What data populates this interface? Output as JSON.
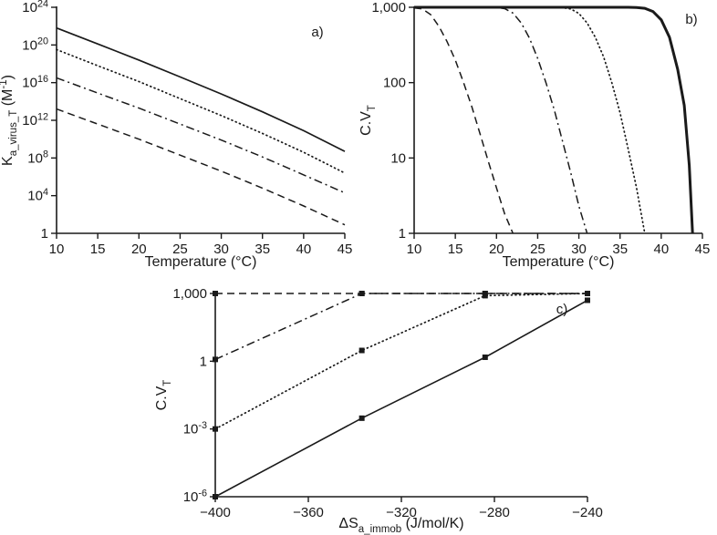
{
  "figure": {
    "background": "#ffffff",
    "line_color": "#1a1a1a"
  },
  "chart_data": [
    {
      "id": "a",
      "type": "line",
      "panel_label": "a)",
      "xlabel": "Temperature (°C)",
      "ylabel": "K_{a_virus_T} (M^{-1})",
      "xlim": [
        10,
        45
      ],
      "xticks": [
        10,
        15,
        20,
        25,
        30,
        35,
        40,
        45
      ],
      "ylog": true,
      "ylim_exp": [
        0,
        24
      ],
      "yticks": [
        {
          "exp": 0,
          "label": "1"
        },
        {
          "exp": 4,
          "label": "10^{4}"
        },
        {
          "exp": 8,
          "label": "10^{8}"
        },
        {
          "exp": 12,
          "label": "10^{12}"
        },
        {
          "exp": 16,
          "label": "10^{16}"
        },
        {
          "exp": 20,
          "label": "10^{20}"
        },
        {
          "exp": 24,
          "label": "10^{24}"
        }
      ],
      "series": [
        {
          "name": "solid-line",
          "style": "solid",
          "width": 1.7,
          "x": [
            10,
            15,
            20,
            25,
            30,
            35,
            40,
            45
          ],
          "y": [
            6.3e+21,
            1.3e+20,
            2.5e+18,
            4e+16,
            630000000000000.0,
            7900000000000.0,
            79000000000.0,
            500000000.0
          ]
        },
        {
          "name": "dotted-line",
          "style": "dotted",
          "width": 1.7,
          "x": [
            10,
            15,
            20,
            25,
            30,
            35,
            40,
            45
          ],
          "y": [
            3.2e+19,
            6.3e+17,
            1.3e+16,
            200000000000000.0,
            3200000000000.0,
            40000000000.0,
            400000000.0,
            2500000.0
          ]
        },
        {
          "name": "dashdot-line",
          "style": "dashdot",
          "width": 1.5,
          "x": [
            10,
            15,
            20,
            25,
            30,
            35,
            40,
            45
          ],
          "y": [
            3.2e+16,
            790000000000000.0,
            20000000000000.0,
            400000000000.0,
            7900000000.0,
            130000000.0,
            1600000.0,
            20000.0
          ]
        },
        {
          "name": "dashed-line",
          "style": "dashed",
          "width": 1.5,
          "x": [
            10,
            15,
            20,
            25,
            30,
            35,
            40,
            45
          ],
          "y": [
            16000000000000.0,
            400000000000.0,
            10000000000.0,
            200000000.0,
            4000000.0,
            63000.0,
            800.0,
            8
          ]
        }
      ]
    },
    {
      "id": "b",
      "type": "line",
      "panel_label": "b)",
      "xlabel": "Temperature (°C)",
      "ylabel": "C.V_{T}",
      "xlim": [
        10,
        45
      ],
      "xticks": [
        10,
        15,
        20,
        25,
        30,
        35,
        40,
        45
      ],
      "ylog": true,
      "ylim_exp": [
        0,
        3
      ],
      "yticks": [
        {
          "exp": 0,
          "label": "1"
        },
        {
          "exp": 1,
          "label": "10"
        },
        {
          "exp": 2,
          "label": "100"
        },
        {
          "exp": 3,
          "label": "1,000"
        }
      ],
      "series": [
        {
          "name": "dashed-curve",
          "style": "dashed",
          "width": 1.5,
          "x": [
            10,
            11,
            12,
            13,
            14,
            15,
            16,
            17,
            18,
            19,
            20,
            21,
            22
          ],
          "y": [
            980,
            950,
            800,
            560,
            350,
            200,
            100,
            48,
            21,
            9,
            4,
            1.8,
            1
          ]
        },
        {
          "name": "dashdot-curve",
          "style": "dashdot",
          "width": 1.5,
          "x": [
            10,
            20,
            21,
            22,
            23,
            24,
            25,
            26,
            27,
            28,
            29,
            30,
            31
          ],
          "y": [
            1000,
            995,
            960,
            840,
            620,
            390,
            210,
            100,
            44,
            17,
            6.5,
            2.3,
            1
          ]
        },
        {
          "name": "dotted-curve",
          "style": "dotted",
          "width": 1.7,
          "x": [
            10,
            27,
            28,
            29,
            30,
            31,
            32,
            33,
            34,
            35,
            36,
            37,
            38
          ],
          "y": [
            1000,
            1000,
            990,
            950,
            830,
            620,
            400,
            220,
            100,
            40,
            13,
            4,
            1
          ]
        },
        {
          "name": "solid-thick-curve",
          "style": "solid",
          "width": 3,
          "x": [
            10,
            36,
            37,
            38,
            39,
            40,
            41,
            42,
            42.8,
            43.4,
            43.8
          ],
          "y": [
            1000,
            1000,
            995,
            970,
            880,
            680,
            400,
            150,
            50,
            8,
            1
          ]
        }
      ]
    },
    {
      "id": "c",
      "type": "line",
      "panel_label": "c)",
      "xlabel": "ΔS_{a_immob} (J/mol/K)",
      "ylabel": "C.V_{T}",
      "xlim": [
        -400,
        -240
      ],
      "xticks": [
        -400,
        -360,
        -320,
        -280,
        -240
      ],
      "ylog": true,
      "ylim_exp": [
        -6,
        3
      ],
      "yticks": [
        {
          "exp": -6,
          "label": "10^{-6}"
        },
        {
          "exp": -3,
          "label": "10^{-3}"
        },
        {
          "exp": 0,
          "label": "1"
        },
        {
          "exp": 3,
          "label": "1,000"
        }
      ],
      "series": [
        {
          "name": "dashed-markers-line",
          "style": "dashed",
          "width": 1.5,
          "marker": "square",
          "x": [
            -400,
            -337,
            -284,
            -240
          ],
          "y": [
            1000,
            1000,
            1000,
            1000
          ]
        },
        {
          "name": "dashdot-markers-line",
          "style": "dashdot",
          "width": 1.5,
          "marker": "square",
          "x": [
            -400,
            -337,
            -284,
            -240
          ],
          "y": [
            1.2,
            1000,
            1000,
            1000
          ]
        },
        {
          "name": "dotted-markers-line",
          "style": "dotted",
          "width": 1.7,
          "marker": "square",
          "x": [
            -400,
            -337,
            -284,
            -240
          ],
          "y": [
            0.001,
            3,
            800,
            1000
          ]
        },
        {
          "name": "solid-markers-line",
          "style": "solid",
          "width": 1.6,
          "marker": "square",
          "x": [
            -400,
            -337,
            -284,
            -240
          ],
          "y": [
            1e-06,
            0.003,
            1.5,
            500
          ]
        }
      ]
    }
  ]
}
